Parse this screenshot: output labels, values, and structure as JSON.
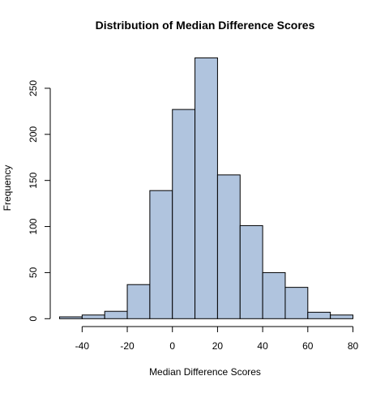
{
  "chart_data": {
    "type": "bar",
    "title": "Distribution of Median Difference Scores",
    "xlabel": "Median Difference Scores",
    "ylabel": "Frequency",
    "bins": [
      {
        "start": -50,
        "end": -40,
        "count": 2
      },
      {
        "start": -40,
        "end": -30,
        "count": 4
      },
      {
        "start": -30,
        "end": -20,
        "count": 8
      },
      {
        "start": -20,
        "end": -10,
        "count": 37
      },
      {
        "start": -10,
        "end": 0,
        "count": 139
      },
      {
        "start": 0,
        "end": 10,
        "count": 227
      },
      {
        "start": 10,
        "end": 20,
        "count": 283
      },
      {
        "start": 20,
        "end": 30,
        "count": 156
      },
      {
        "start": 30,
        "end": 40,
        "count": 101
      },
      {
        "start": 40,
        "end": 50,
        "count": 50
      },
      {
        "start": 50,
        "end": 60,
        "count": 34
      },
      {
        "start": 60,
        "end": 70,
        "count": 7
      },
      {
        "start": 70,
        "end": 80,
        "count": 4
      }
    ],
    "xlim": [
      -50,
      80
    ],
    "ylim": [
      0,
      283
    ],
    "x_ticks": [
      -40,
      -20,
      0,
      20,
      40,
      60,
      80
    ],
    "x_tick_labels": [
      "-40",
      "-20",
      "0",
      "20",
      "40",
      "60",
      "80"
    ],
    "y_ticks": [
      0,
      50,
      100,
      150,
      200,
      250
    ],
    "y_tick_labels": [
      "0",
      "50",
      "100",
      "150",
      "200",
      "250"
    ],
    "bar_color": "#b0c4de",
    "bar_edge_color": "#000000",
    "grid": false,
    "legend": "none"
  }
}
